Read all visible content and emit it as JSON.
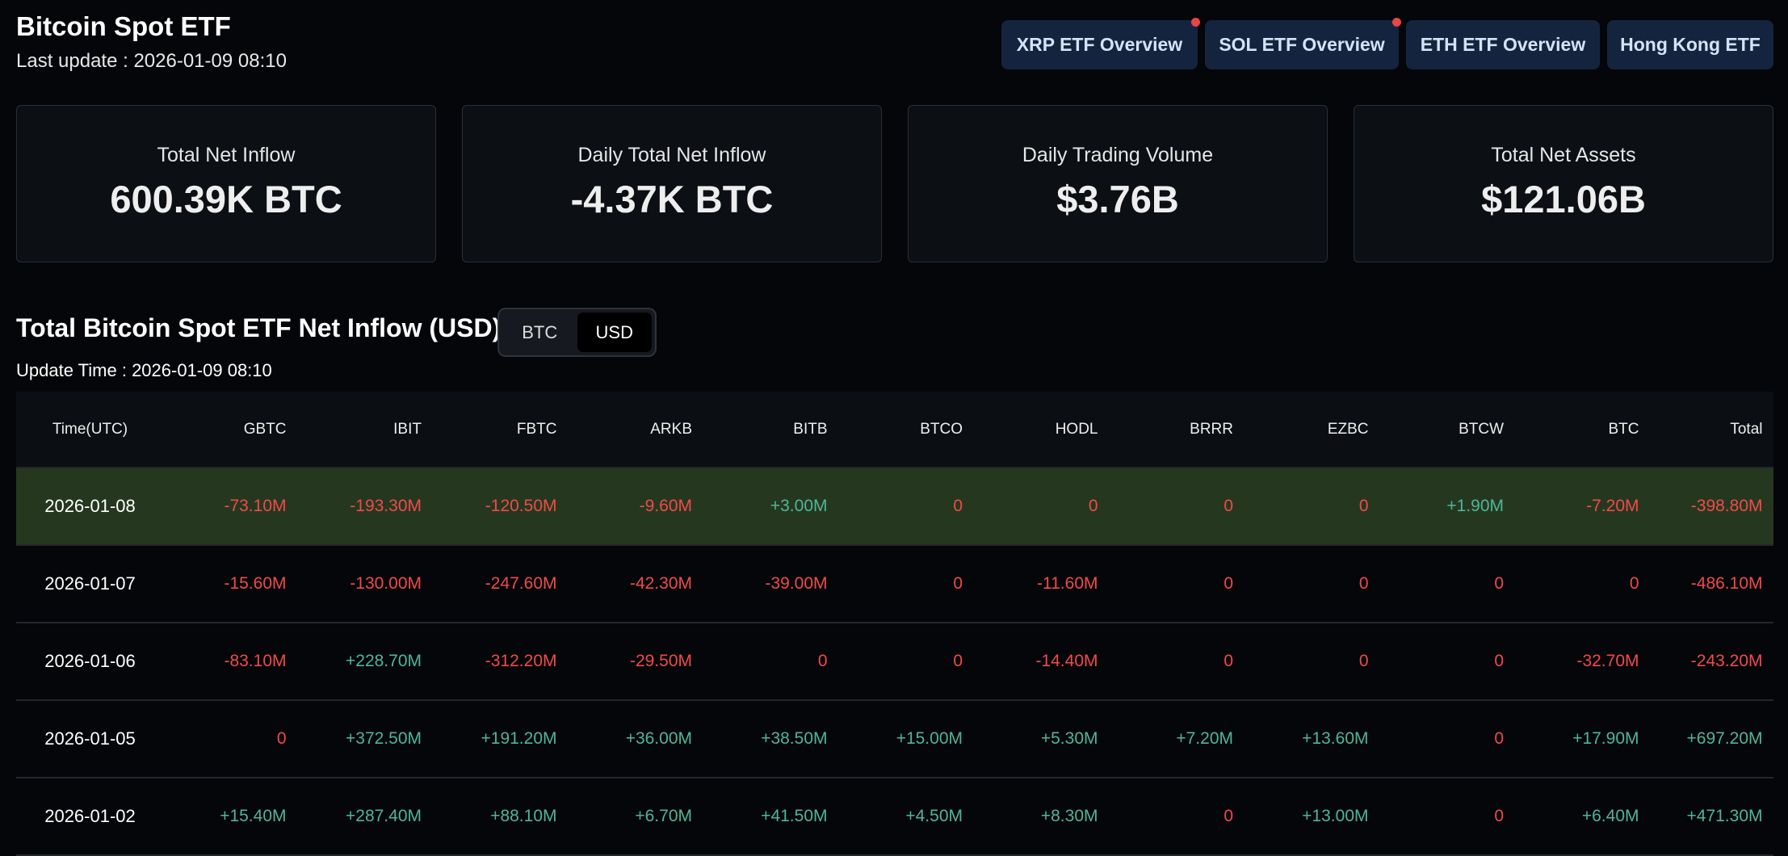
{
  "header": {
    "title": "Bitcoin Spot ETF",
    "last_update": "Last update : 2026-01-09 08:10"
  },
  "nav": [
    {
      "label": "XRP ETF Overview",
      "dot": true
    },
    {
      "label": "SOL ETF Overview",
      "dot": true
    },
    {
      "label": "ETH ETF Overview",
      "dot": false
    },
    {
      "label": "Hong Kong ETF",
      "dot": false
    }
  ],
  "cards": [
    {
      "label": "Total Net Inflow",
      "value": "600.39K BTC"
    },
    {
      "label": "Daily Total Net Inflow",
      "value": "-4.37K BTC"
    },
    {
      "label": "Daily Trading Volume",
      "value": "$3.76B"
    },
    {
      "label": "Total Net Assets",
      "value": "$121.06B"
    }
  ],
  "section": {
    "title": "Total Bitcoin Spot ETF Net Inflow (USD)",
    "toggle": [
      "BTC",
      "USD"
    ],
    "toggle_selected": "USD",
    "update_time": "Update Time : 2026-01-09 08:10"
  },
  "colors": {
    "negative": "#f04a4a",
    "positive": "#4fb59a",
    "highlight_row": "#25381f",
    "button_bg": "#14243f"
  },
  "table": {
    "columns": [
      "Time(UTC)",
      "GBTC",
      "IBIT",
      "FBTC",
      "ARKB",
      "BITB",
      "BTCO",
      "HODL",
      "BRRR",
      "EZBC",
      "BTCW",
      "BTC",
      "Total"
    ],
    "rows": [
      [
        "2026-01-08",
        "-73.10M",
        "-193.30M",
        "-120.50M",
        "-9.60M",
        "+3.00M",
        "0",
        "0",
        "0",
        "0",
        "+1.90M",
        "-7.20M",
        "-398.80M"
      ],
      [
        "2026-01-07",
        "-15.60M",
        "-130.00M",
        "-247.60M",
        "-42.30M",
        "-39.00M",
        "0",
        "-11.60M",
        "0",
        "0",
        "0",
        "0",
        "-486.10M"
      ],
      [
        "2026-01-06",
        "-83.10M",
        "+228.70M",
        "-312.20M",
        "-29.50M",
        "0",
        "0",
        "-14.40M",
        "0",
        "0",
        "0",
        "-32.70M",
        "-243.20M"
      ],
      [
        "2026-01-05",
        "0",
        "+372.50M",
        "+191.20M",
        "+36.00M",
        "+38.50M",
        "+15.00M",
        "+5.30M",
        "+7.20M",
        "+13.60M",
        "0",
        "+17.90M",
        "+697.20M"
      ],
      [
        "2026-01-02",
        "+15.40M",
        "+287.40M",
        "+88.10M",
        "+6.70M",
        "+41.50M",
        "+4.50M",
        "+8.30M",
        "0",
        "+13.00M",
        "0",
        "+6.40M",
        "+471.30M"
      ]
    ],
    "highlighted_row": 0
  }
}
